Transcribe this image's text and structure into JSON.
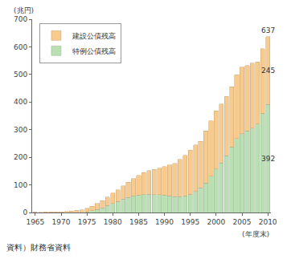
{
  "chart_data": {
    "type": "bar",
    "stacked": true,
    "x": [
      1965,
      1966,
      1967,
      1968,
      1969,
      1970,
      1971,
      1972,
      1973,
      1974,
      1975,
      1976,
      1977,
      1978,
      1979,
      1980,
      1981,
      1982,
      1983,
      1984,
      1985,
      1986,
      1987,
      1988,
      1989,
      1990,
      1991,
      1992,
      1993,
      1994,
      1995,
      1996,
      1997,
      1998,
      1999,
      2000,
      2001,
      2002,
      2003,
      2004,
      2005,
      2006,
      2007,
      2008,
      2009,
      2010
    ],
    "series": [
      {
        "name": "特例公債残高",
        "color": "#b9dfb3",
        "values": [
          0.2,
          0,
          0,
          0,
          0,
          0,
          0,
          0,
          0,
          0,
          2.3,
          6,
          11,
          17,
          25,
          33,
          40,
          48,
          55,
          60,
          63,
          65,
          66,
          65,
          64,
          63,
          60,
          58,
          57,
          61,
          66,
          76,
          90,
          107,
          132,
          157,
          180,
          205,
          238,
          268,
          285,
          295,
          305,
          320,
          360,
          392
        ]
      },
      {
        "name": "建設公債残高",
        "color": "#f7cb8e",
        "values": [
          0,
          0.9,
          1.6,
          2.2,
          2.6,
          2.8,
          3.9,
          5.8,
          7.5,
          9.7,
          12.7,
          16.1,
          21.0,
          25.6,
          31.3,
          37.5,
          42.3,
          48.5,
          54.7,
          62.3,
          71.4,
          80.1,
          85.8,
          91.8,
          97.1,
          103.3,
          111.6,
          120.4,
          135.5,
          145.6,
          159.2,
          168.7,
          168.0,
          188.2,
          199.7,
          210.6,
          212.4,
          216.1,
          218.0,
          231.0,
          241.9,
          236.7,
          236.5,
          225.9,
          233.9,
          245
        ]
      }
    ],
    "xlim": [
      1964.4,
      2010.6
    ],
    "xticks": [
      1965,
      1970,
      1975,
      1980,
      1985,
      1990,
      1995,
      2000,
      2005,
      2010
    ],
    "ylim": [
      0,
      700
    ],
    "yticks": [
      0,
      100,
      200,
      300,
      400,
      500,
      600,
      700
    ],
    "ylabel": "(兆円)",
    "xlabel": "(年度末)",
    "source": "資料）財務省資料",
    "legend": "top left",
    "grid": false,
    "annotations": [
      {
        "x": 2010,
        "value": 637
      },
      {
        "x": 2010,
        "value": 245
      },
      {
        "x": 2010,
        "value": 392
      }
    ]
  }
}
